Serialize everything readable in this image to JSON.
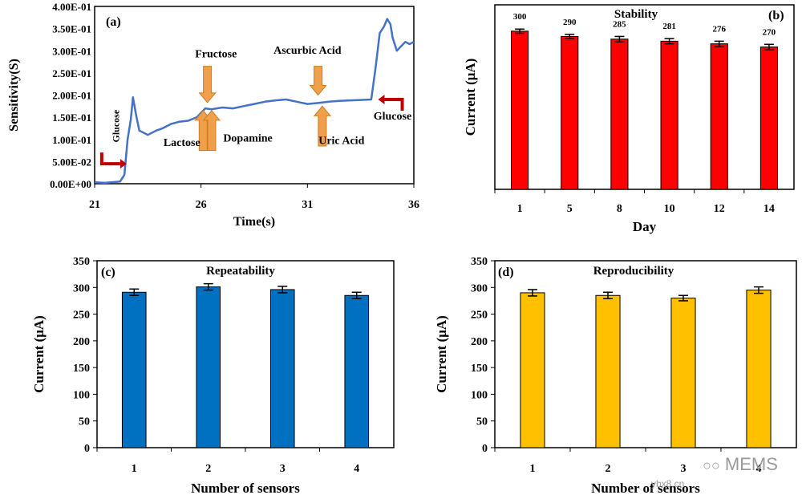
{
  "watermark": {
    "site": "ybx8.cn",
    "brand": "MEMS"
  },
  "chart_data": [
    {
      "panel": "(a)",
      "type": "line",
      "title": "",
      "xlabel": "Time(s)",
      "ylabel": "Sensitivity(S)",
      "xlim": [
        21,
        36
      ],
      "ylim": [
        0,
        0.4
      ],
      "xticks": [
        21,
        26,
        31,
        36
      ],
      "yticks": [
        0,
        0.05,
        0.1,
        0.15,
        0.2,
        0.25,
        0.3,
        0.35,
        0.4
      ],
      "ytick_labels": [
        "0.00E+00",
        "5.00E-02",
        "1.00E-01",
        "1.50E-01",
        "2.00E-01",
        "2.50E-01",
        "3.00E-01",
        "3.50E-01",
        "4.00E-01"
      ],
      "color": "#4472c4",
      "x": [
        21.0,
        21.5,
        22.0,
        22.2,
        22.4,
        22.55,
        22.7,
        22.8,
        22.95,
        23.1,
        23.5,
        23.9,
        24.2,
        24.6,
        25.0,
        25.4,
        25.8,
        26.0,
        26.2,
        26.5,
        27.0,
        27.5,
        28.0,
        28.5,
        29.0,
        29.5,
        30.0,
        30.5,
        31.0,
        31.5,
        32.0,
        32.5,
        33.0,
        33.5,
        34.0,
        34.2,
        34.4,
        34.6,
        34.75,
        34.9,
        35.0,
        35.2,
        35.4,
        35.6,
        35.8,
        36.0
      ],
      "y": [
        0.003,
        0.002,
        0.004,
        0.005,
        0.02,
        0.1,
        0.145,
        0.195,
        0.155,
        0.12,
        0.11,
        0.12,
        0.125,
        0.135,
        0.14,
        0.142,
        0.15,
        0.16,
        0.17,
        0.168,
        0.172,
        0.17,
        0.175,
        0.18,
        0.185,
        0.188,
        0.19,
        0.185,
        0.18,
        0.182,
        0.185,
        0.187,
        0.188,
        0.189,
        0.19,
        0.26,
        0.34,
        0.355,
        0.372,
        0.36,
        0.33,
        0.3,
        0.31,
        0.32,
        0.315,
        0.32
      ],
      "annotations": [
        {
          "text": "Glucose",
          "x": 22.0,
          "y": 0.13,
          "rotate": true
        },
        {
          "text": "Fructose",
          "x": 26.7,
          "y": 0.285
        },
        {
          "text": "Lactose",
          "x": 25.1,
          "y": 0.085
        },
        {
          "text": "Dopamine",
          "x": 28.2,
          "y": 0.095
        },
        {
          "text": "Ascurbic Acid",
          "x": 31.0,
          "y": 0.293
        },
        {
          "text": "Uric Acid",
          "x": 32.6,
          "y": 0.09
        },
        {
          "text": "Glucose",
          "x": 35.0,
          "y": 0.145
        }
      ],
      "arrows": [
        {
          "kind": "down",
          "x": 26.3,
          "y_from": 0.265,
          "y_to": 0.183
        },
        {
          "kind": "up",
          "x": 26.1,
          "y_from": 0.075,
          "y_to": 0.165
        },
        {
          "kind": "up",
          "x": 26.5,
          "y_from": 0.075,
          "y_to": 0.165
        },
        {
          "kind": "down",
          "x": 31.5,
          "y_from": 0.265,
          "y_to": 0.2
        },
        {
          "kind": "up",
          "x": 31.7,
          "y_from": 0.085,
          "y_to": 0.175
        }
      ]
    },
    {
      "panel": "(b)",
      "type": "bar",
      "title": "Stability",
      "xlabel": "Day",
      "ylabel": "Current (μA)",
      "categories": [
        "1",
        "5",
        "8",
        "10",
        "12",
        "14"
      ],
      "values": [
        300,
        290,
        285,
        281,
        276,
        270
      ],
      "data_labels": [
        "300",
        "290",
        "285",
        "281",
        "276",
        "270"
      ],
      "errors": [
        4,
        4,
        5,
        5,
        5,
        5
      ],
      "ylim": [
        0,
        350
      ],
      "color": "#ff0000"
    },
    {
      "panel": "(c)",
      "type": "bar",
      "title": "Repeatability",
      "xlabel": "Number of sensors",
      "ylabel": "Current (μA)",
      "categories": [
        "1",
        "2",
        "3",
        "4"
      ],
      "values": [
        291,
        301,
        296,
        285
      ],
      "errors": [
        6,
        6,
        6,
        6
      ],
      "ylim": [
        0,
        350
      ],
      "yticks": [
        0,
        50,
        100,
        150,
        200,
        250,
        300,
        350
      ],
      "color": "#0070c0"
    },
    {
      "panel": "(d)",
      "type": "bar",
      "title": "Reproducibility",
      "xlabel": "Number of sensors",
      "ylabel": "Current (μA)",
      "categories": [
        "1",
        "2",
        "3",
        "4"
      ],
      "values": [
        290,
        285,
        280,
        295
      ],
      "errors": [
        6,
        6,
        5,
        6
      ],
      "ylim": [
        0,
        350
      ],
      "yticks": [
        0,
        50,
        100,
        150,
        200,
        250,
        300,
        350
      ],
      "color": "#ffc000"
    }
  ]
}
